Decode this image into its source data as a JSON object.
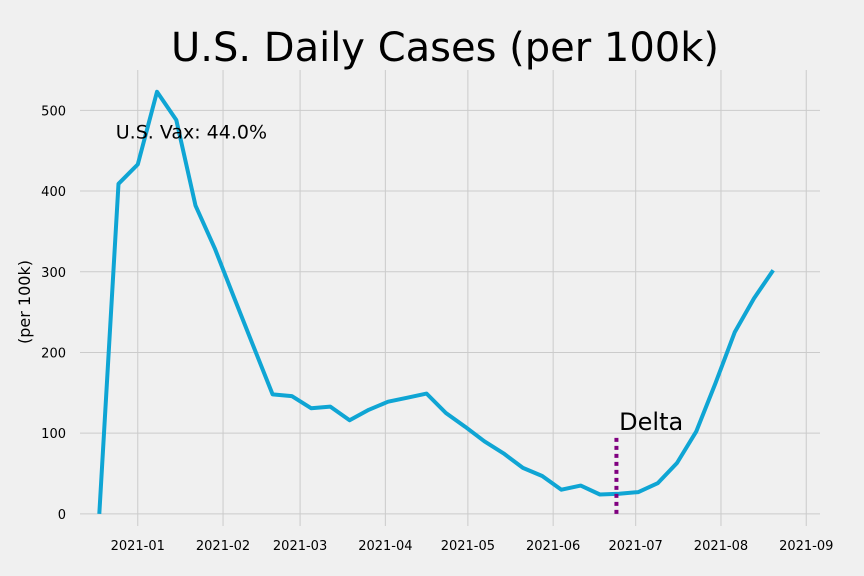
{
  "chart_data": {
    "type": "line",
    "title": "U.S. Daily Cases (per 100k)",
    "ylabel": "(per 100k)",
    "xlabel": "",
    "x_ticks": [
      "2021-01",
      "2021-02",
      "2021-03",
      "2021-04",
      "2021-05",
      "2021-06",
      "2021-07",
      "2021-08",
      "2021-09"
    ],
    "y_ticks": [
      0,
      100,
      200,
      300,
      400,
      500
    ],
    "xlim": [
      "2020-12-11",
      "2021-09-06"
    ],
    "ylim": [
      -15,
      550
    ],
    "grid": true,
    "series": [
      {
        "color": "#0fa5d4",
        "x": [
          "2020-12-18",
          "2020-12-25",
          "2021-01-01",
          "2021-01-08",
          "2021-01-15",
          "2021-01-22",
          "2021-01-29",
          "2021-02-05",
          "2021-02-12",
          "2021-02-19",
          "2021-02-26",
          "2021-03-05",
          "2021-03-12",
          "2021-03-19",
          "2021-03-26",
          "2021-04-02",
          "2021-04-09",
          "2021-04-16",
          "2021-04-23",
          "2021-04-30",
          "2021-05-07",
          "2021-05-14",
          "2021-05-21",
          "2021-05-28",
          "2021-06-04",
          "2021-06-11",
          "2021-06-18",
          "2021-06-25",
          "2021-07-02",
          "2021-07-09",
          "2021-07-16",
          "2021-07-23",
          "2021-07-30",
          "2021-08-06",
          "2021-08-13",
          "2021-08-20"
        ],
        "values": [
          0,
          409,
          433,
          523,
          488,
          382,
          329,
          268,
          208,
          148,
          146,
          131,
          133,
          116,
          129,
          139,
          144,
          149,
          125,
          108,
          90,
          75,
          57,
          47,
          30,
          35,
          24,
          25,
          27,
          38,
          63,
          102,
          162,
          225,
          267,
          302
        ]
      }
    ],
    "annotations": [
      {
        "text": "U.S. Vax: 44.0%",
        "x": "2020-12-24",
        "y": 465
      },
      {
        "text": "Delta",
        "x": "2021-06-25",
        "y": 104
      }
    ],
    "vline": {
      "x": "2021-06-24",
      "y0": 0,
      "y1": 97,
      "color": "#800080",
      "style": "dotted"
    }
  }
}
